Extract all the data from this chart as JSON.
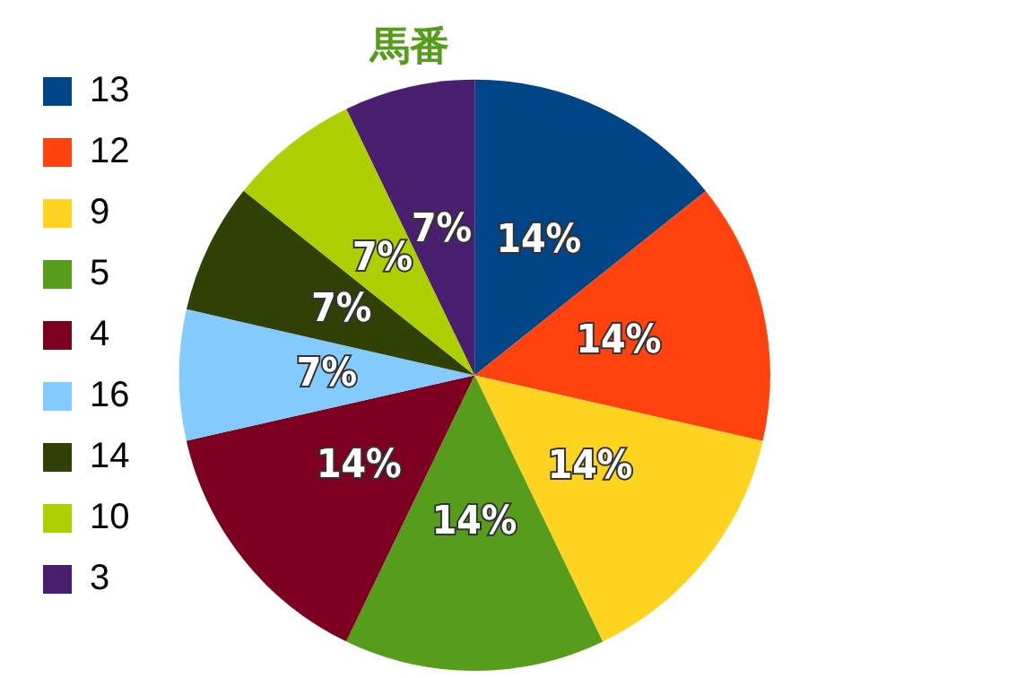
{
  "chart_data": {
    "type": "pie",
    "title": "馬番",
    "categories": [
      "13",
      "12",
      "9",
      "5",
      "4",
      "16",
      "14",
      "10",
      "3"
    ],
    "values": [
      14.29,
      14.29,
      14.29,
      14.29,
      14.29,
      7.14,
      7.14,
      7.14,
      7.14
    ],
    "value_labels": [
      "14%",
      "14%",
      "14%",
      "14%",
      "14%",
      "7%",
      "7%",
      "7%",
      "7%"
    ],
    "colors": [
      "#004586",
      "#ff420e",
      "#ffd320",
      "#579d1c",
      "#7e0021",
      "#83caff",
      "#314004",
      "#aecf00",
      "#4b1f6f"
    ],
    "legend": "left"
  }
}
